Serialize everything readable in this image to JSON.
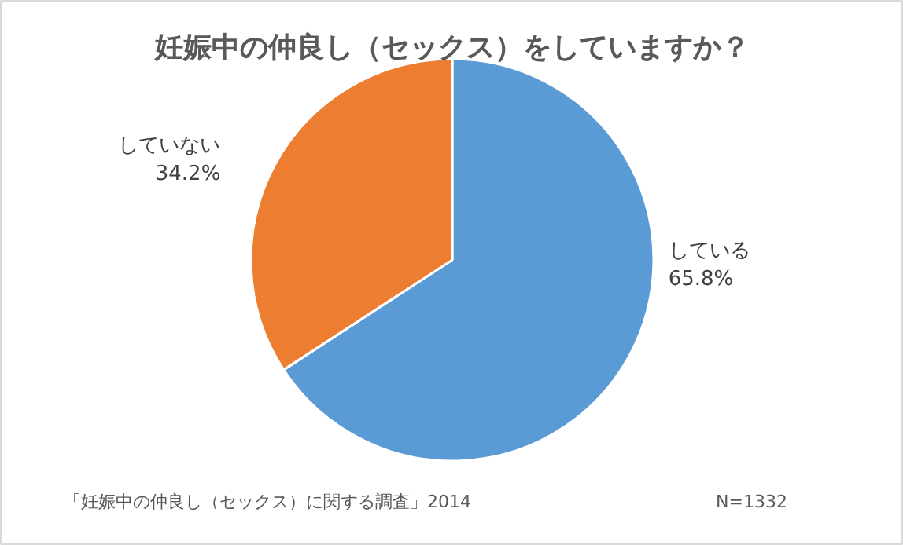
{
  "chart_data": {
    "type": "pie",
    "title": "妊娠中の仲良し（セックス）をしていますか？",
    "categories": [
      "している",
      "していない"
    ],
    "values": [
      65.8,
      34.2
    ],
    "colors": [
      "#5b9bd5",
      "#ed7d31"
    ],
    "value_labels": [
      "65.8%",
      "34.2%"
    ],
    "annotations": [
      "「妊娠中の仲良し（セックス）に関する調査」2014",
      "N=1332"
    ]
  }
}
